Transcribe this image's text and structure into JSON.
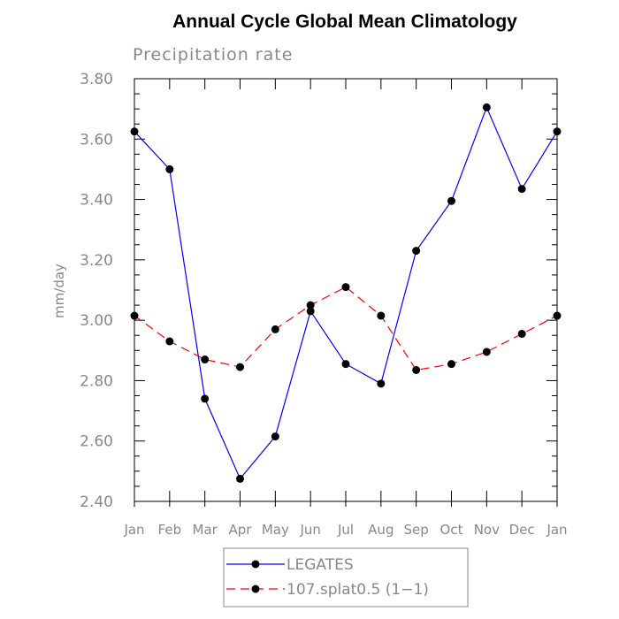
{
  "chart_data": {
    "type": "line",
    "title": "Annual Cycle Global Mean Climatology",
    "subtitle": "Precipitation rate",
    "xlabel": "",
    "ylabel": "mm/day",
    "categories": [
      "Jan",
      "Feb",
      "Mar",
      "Apr",
      "May",
      "Jun",
      "Jul",
      "Aug",
      "Sep",
      "Oct",
      "Nov",
      "Dec",
      "Jan"
    ],
    "ylim": [
      2.4,
      3.8
    ],
    "yticks": [
      "2.40",
      "2.60",
      "2.80",
      "3.00",
      "3.20",
      "3.40",
      "3.60",
      "3.80"
    ],
    "grid": false,
    "legend_placement": "bottom",
    "series": [
      {
        "name": "LEGATES",
        "color": "#0000ff",
        "dash": "solid",
        "values": [
          3.625,
          3.5,
          2.74,
          2.475,
          2.615,
          3.03,
          2.855,
          2.79,
          3.23,
          3.395,
          3.705,
          3.435,
          3.625
        ]
      },
      {
        "name": "107.splat0.5 (1−1)",
        "color": "#ff0000",
        "dash": "dashed",
        "values": [
          3.015,
          2.93,
          2.87,
          2.845,
          2.97,
          3.05,
          3.11,
          3.015,
          2.835,
          2.855,
          2.895,
          2.955,
          3.015
        ]
      }
    ]
  }
}
